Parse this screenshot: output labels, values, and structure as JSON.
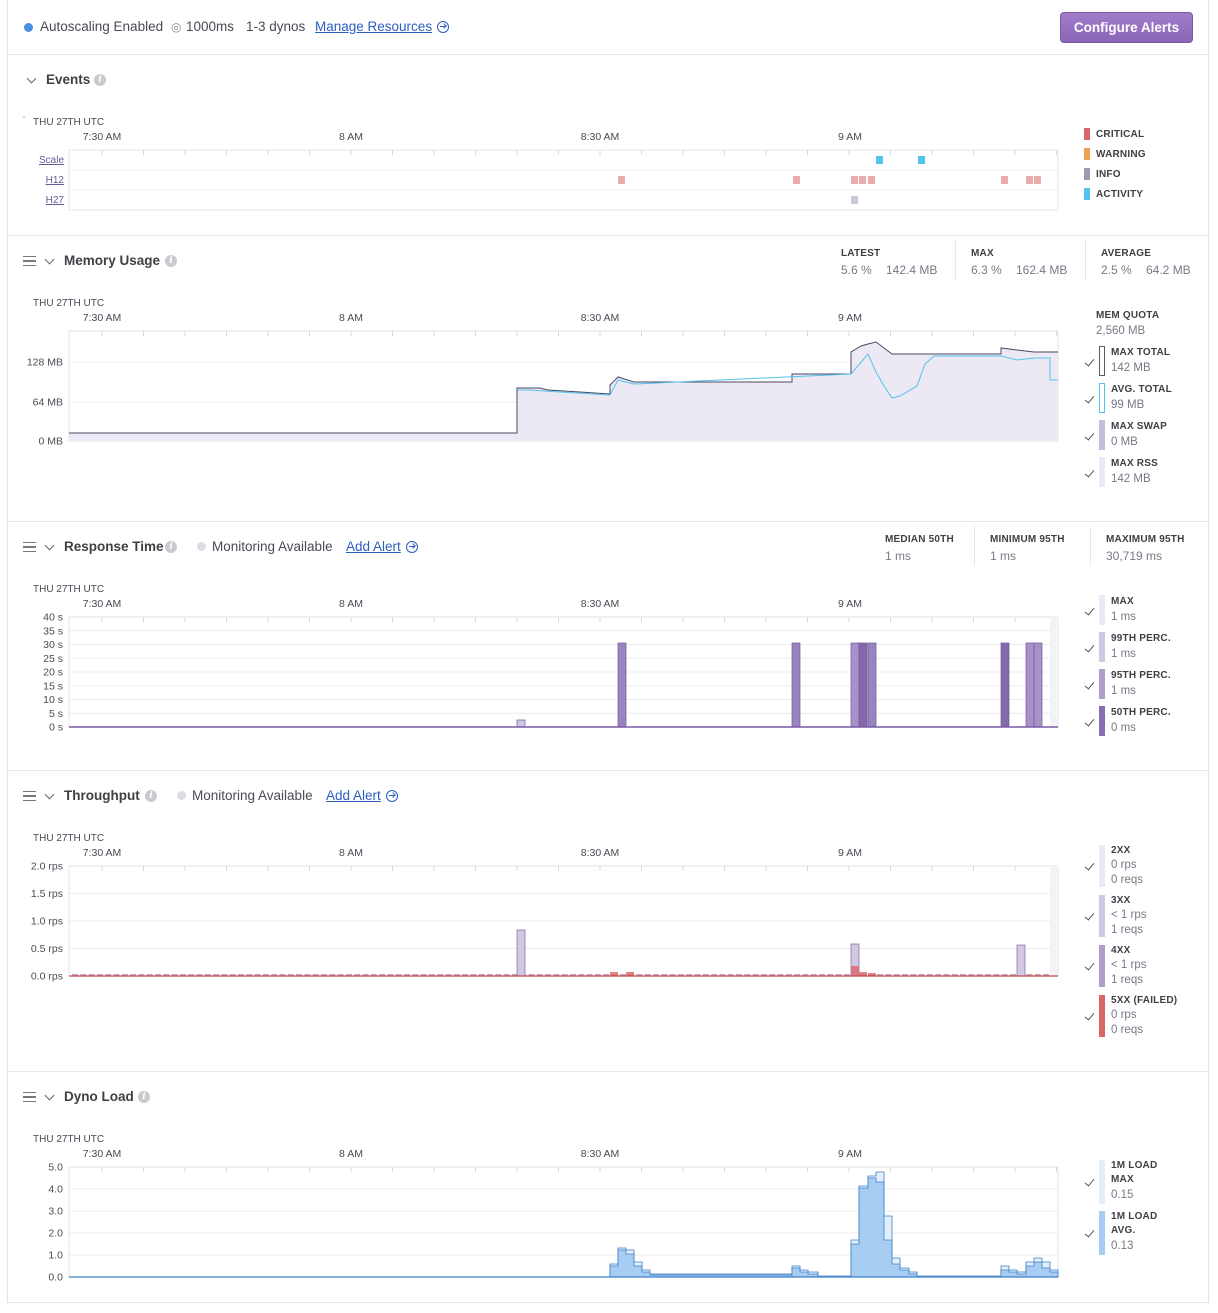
{
  "topbar": {
    "autoscaling": "Autoscaling Enabled",
    "target": "1000ms",
    "dynos": "1-3 dynos",
    "manage_link": "Manage Resources",
    "configure_button": "Configure Alerts"
  },
  "timeaxis": {
    "zone_label": "THU 27TH UTC",
    "ticks": [
      "7:30 AM",
      "8 AM",
      "8:30 AM",
      "9 AM"
    ]
  },
  "events": {
    "title": "Events",
    "rows": [
      "Scale",
      "H12",
      "H27"
    ],
    "legend": [
      "CRITICAL",
      "WARNING",
      "INFO",
      "ACTIVITY"
    ],
    "colors": {
      "critical": "#d9676a",
      "warning": "#f0a055",
      "info": "#9a9db0",
      "activity": "#52c3ee"
    }
  },
  "memory": {
    "title": "Memory Usage",
    "stats": [
      {
        "label": "LATEST",
        "v1": "5.6 %",
        "v2": "142.4 MB"
      },
      {
        "label": "MAX",
        "v1": "6.3 %",
        "v2": "162.4 MB"
      },
      {
        "label": "AVERAGE",
        "v1": "2.5 %",
        "v2": "64.2 MB"
      }
    ],
    "y_ticks": [
      "128 MB",
      "64 MB",
      "0 MB"
    ],
    "quota_label": "MEM QUOTA",
    "quota_value": "2,560 MB",
    "legend": [
      {
        "label": "MAX TOTAL",
        "value": "142 MB"
      },
      {
        "label": "AVG. TOTAL",
        "value": "99 MB"
      },
      {
        "label": "MAX SWAP",
        "value": "0 MB"
      },
      {
        "label": "MAX RSS",
        "value": "142 MB"
      }
    ]
  },
  "response": {
    "title": "Response Time",
    "monitoring": "Monitoring Available",
    "add_alert": "Add Alert",
    "stats": [
      {
        "label": "MEDIAN 50TH",
        "value": "1 ms"
      },
      {
        "label": "MINIMUM 95TH",
        "value": "1 ms"
      },
      {
        "label": "MAXIMUM 95TH",
        "value": "30,719 ms"
      }
    ],
    "y_ticks": [
      "40 s",
      "35 s",
      "30 s",
      "25 s",
      "20 s",
      "15 s",
      "10 s",
      "5 s",
      "0 s"
    ],
    "legend": [
      {
        "label": "MAX",
        "value": "1 ms"
      },
      {
        "label": "99TH PERC.",
        "value": "1 ms"
      },
      {
        "label": "95TH PERC.",
        "value": "1 ms"
      },
      {
        "label": "50TH PERC.",
        "value": "0 ms"
      }
    ]
  },
  "throughput": {
    "title": "Throughput",
    "monitoring": "Monitoring Available",
    "add_alert": "Add Alert",
    "y_ticks": [
      "2.0 rps",
      "1.5 rps",
      "1.0 rps",
      "0.5 rps",
      "0.0 rps"
    ],
    "legend": [
      {
        "label": "2XX",
        "v1": "0 rps",
        "v2": "0 reqs"
      },
      {
        "label": "3XX",
        "v1": "< 1 rps",
        "v2": "1 reqs"
      },
      {
        "label": "4XX",
        "v1": "< 1 rps",
        "v2": "1 reqs"
      },
      {
        "label": "5XX (FAILED)",
        "v1": "0 rps",
        "v2": "0 reqs"
      }
    ]
  },
  "dynoload": {
    "title": "Dyno Load",
    "y_ticks": [
      "5.0",
      "4.0",
      "3.0",
      "2.0",
      "1.0",
      "0.0"
    ],
    "legend": [
      {
        "label": "1M LOAD",
        "label2": "MAX",
        "value": "0.15"
      },
      {
        "label": "1M LOAD",
        "label2": "AVG.",
        "value": "0.13"
      }
    ]
  }
}
